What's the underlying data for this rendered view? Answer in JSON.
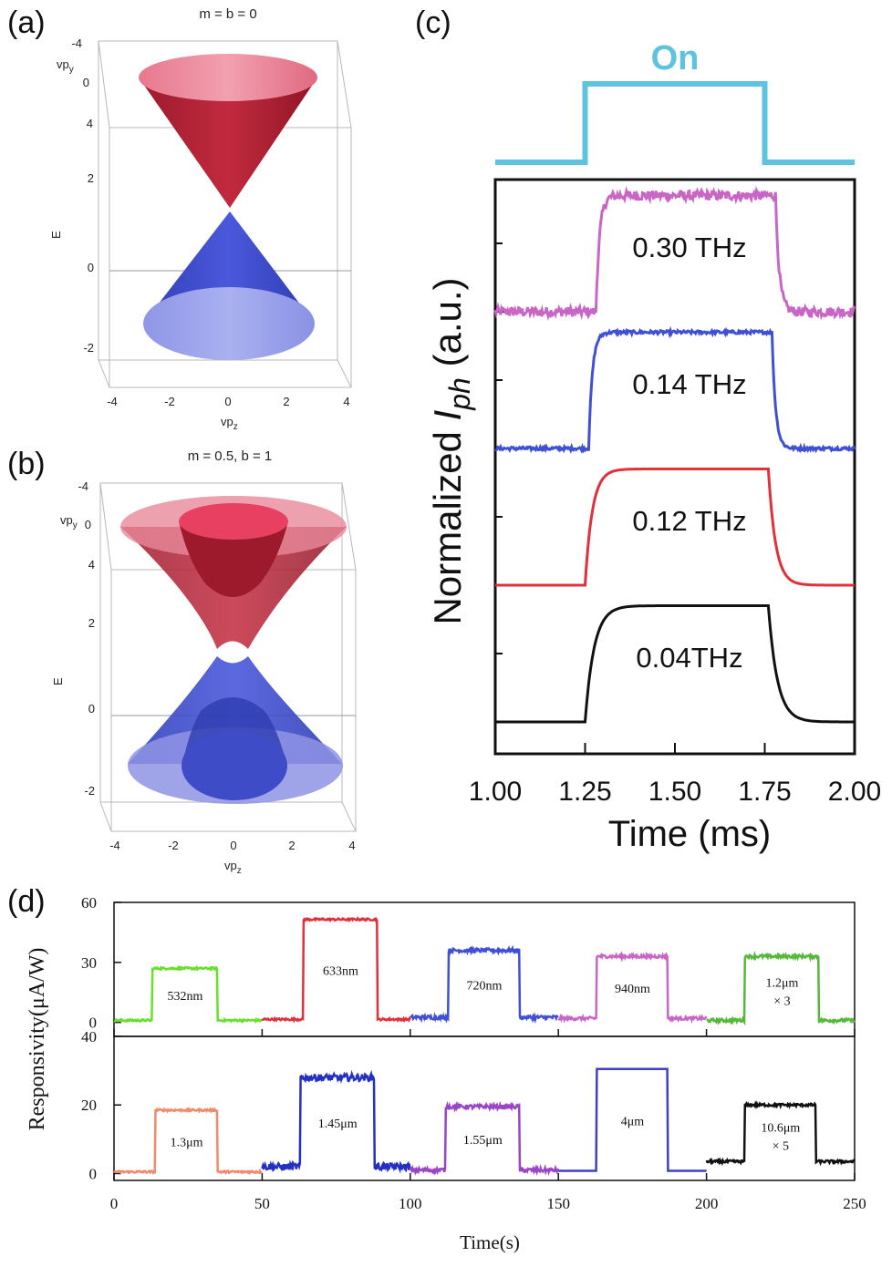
{
  "panels": {
    "a": {
      "label": "(a)",
      "title": "m = b = 0",
      "axis_labels": {
        "y_top": "vp",
        "y_top_sub": "y",
        "z": "E",
        "x": "vp",
        "x_sub": "z"
      },
      "y_ticks": [
        "-4",
        "0",
        "4"
      ],
      "z_ticks": [
        "2",
        "0",
        "-2"
      ],
      "x_ticks": [
        "-4",
        "-2",
        "0",
        "2",
        "4"
      ]
    },
    "b": {
      "label": "(b)",
      "title": "m = 0.5, b = 1",
      "axis_labels": {
        "y_top": "vp",
        "y_top_sub": "y",
        "z": "E",
        "x": "vp",
        "x_sub": "z"
      },
      "y_ticks": [
        "-4",
        "0",
        "4"
      ],
      "z_ticks": [
        "2",
        "0",
        "-2"
      ],
      "x_ticks": [
        "-4",
        "-2",
        "0",
        "2",
        "4"
      ]
    }
  },
  "chart_data": [
    {
      "id": "c",
      "type": "line",
      "label": "(c)",
      "xlabel": "Time (ms)",
      "ylabel_prefix": "Normalized ",
      "ylabel_italic": "I",
      "ylabel_sub": "ph",
      "ylabel_suffix": " (a.u.)",
      "x_ticks": [
        "1.00",
        "1.25",
        "1.50",
        "1.75",
        "2.00"
      ],
      "xlim": [
        1.0,
        2.0
      ],
      "ylim": [
        0,
        4.2
      ],
      "on_signal": {
        "label": "On",
        "start": 1.25,
        "end": 1.75,
        "color": "#5ec3de"
      },
      "series": [
        {
          "name": "0.30 THz",
          "color": "#c966c5",
          "base": 3.0,
          "height": 0.85,
          "rise": 0.01,
          "start": 1.28,
          "end": 1.78,
          "noise": 0.035
        },
        {
          "name": "0.14 THz",
          "color": "#3f4fd6",
          "base": 2.0,
          "height": 0.85,
          "rise": 0.01,
          "start": 1.26,
          "end": 1.77,
          "noise": 0.012
        },
        {
          "name": "0.12 THz",
          "color": "#e0303a",
          "base": 1.0,
          "height": 0.85,
          "rise": 0.02,
          "start": 1.25,
          "end": 1.76,
          "noise": 0.0
        },
        {
          "name": "0.04THz",
          "color": "#111111",
          "base": 0.0,
          "height": 0.85,
          "rise": 0.025,
          "start": 1.25,
          "end": 1.76,
          "noise": 0.0
        }
      ]
    },
    {
      "id": "d",
      "type": "line",
      "label": "(d)",
      "xlabel": "Time(s)",
      "ylabel": "Responsivity(μA/W)",
      "xlim": [
        0,
        250
      ],
      "x_ticks": [
        "0",
        "50",
        "100",
        "150",
        "200",
        "250"
      ],
      "top": {
        "ylim": [
          -7,
          60
        ],
        "y_ticks": [
          "60",
          "30",
          "0"
        ],
        "series": [
          {
            "name": "532nm",
            "color": "#66e02a",
            "x0": 0,
            "x1": 50,
            "on": 13,
            "off": 35,
            "low": 1,
            "high": 27,
            "noise": 0.5
          },
          {
            "name": "633nm",
            "color": "#e0303a",
            "x0": 50,
            "x1": 100,
            "on": 64,
            "off": 89,
            "low": 1.5,
            "high": 51.5,
            "noise": 0.5
          },
          {
            "name": "720nm",
            "color": "#3f4fd6",
            "x0": 100,
            "x1": 150,
            "on": 113,
            "off": 137,
            "low": 2.5,
            "high": 36,
            "noise": 1.0
          },
          {
            "name": "940nm",
            "color": "#c966c5",
            "x0": 150,
            "x1": 200,
            "on": 163,
            "off": 187,
            "low": 2,
            "high": 33,
            "noise": 0.8
          },
          {
            "name": "1.2μm",
            "name2": "× 3",
            "color": "#55b83a",
            "x0": 200,
            "x1": 250,
            "on": 213,
            "off": 238,
            "low": 1,
            "high": 33,
            "noise": 0.8
          }
        ]
      },
      "bottom": {
        "ylim": [
          -2,
          40
        ],
        "y_ticks": [
          "40",
          "20",
          "0"
        ],
        "series": [
          {
            "name": "1.3μm",
            "color": "#f08a6a",
            "x0": 0,
            "x1": 50,
            "on": 14,
            "off": 35,
            "low": 0.5,
            "high": 18.5,
            "noise": 0.3
          },
          {
            "name": "1.45μm",
            "color": "#2430c4",
            "x0": 50,
            "x1": 100,
            "on": 63,
            "off": 88,
            "low": 2,
            "high": 28,
            "noise": 1.0
          },
          {
            "name": "1.55μm",
            "color": "#9a44c8",
            "x0": 100,
            "x1": 150,
            "on": 112,
            "off": 137,
            "low": 1,
            "high": 19.5,
            "noise": 0.6
          },
          {
            "name": "4μm",
            "color": "#3f3fc8",
            "x0": 150,
            "x1": 200,
            "on": 163,
            "off": 187,
            "low": 0.8,
            "high": 30.5,
            "noise": 0.0
          },
          {
            "name": "10.6μm",
            "name2": "× 5",
            "color": "#111111",
            "x0": 200,
            "x1": 250,
            "on": 213,
            "off": 237,
            "low": 3.5,
            "high": 20,
            "noise": 0.4
          }
        ]
      }
    }
  ]
}
